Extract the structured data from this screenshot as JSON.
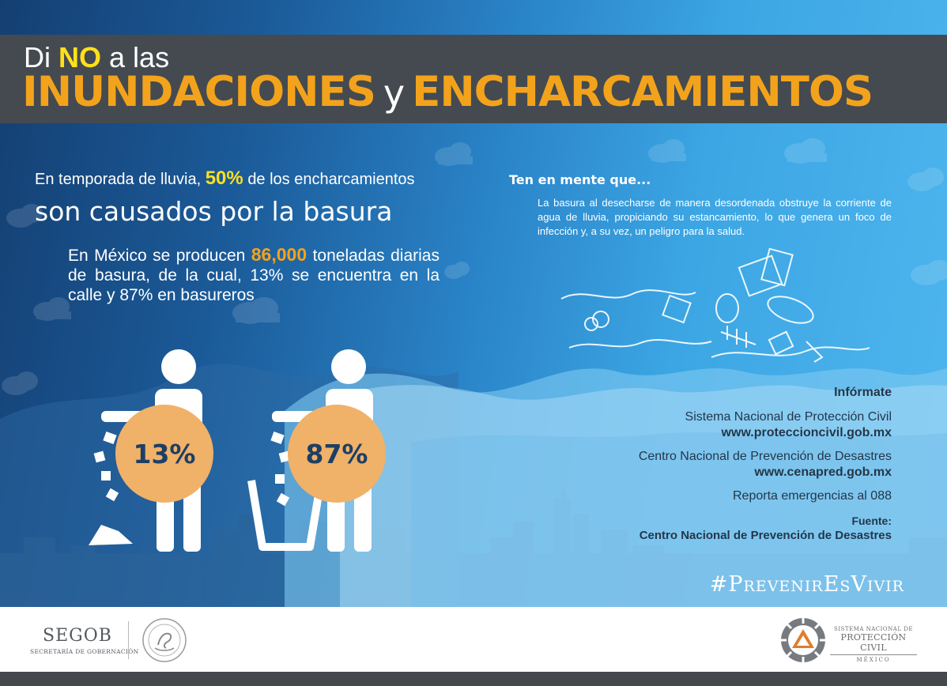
{
  "header": {
    "line1_pre": "Di",
    "line1_no": "NO",
    "line1_post": "a las",
    "word1": "INUNDACIONES",
    "joiner": "y",
    "word2": "ENCHARCAMIENTOS"
  },
  "left": {
    "lead_pre": "En temporada de lluvia,",
    "lead_pct": "50%",
    "lead_post": "de los encharcamientos",
    "headline": "son causados por la basura",
    "fact_pre": "En México se producen",
    "fact_num": "86,000",
    "fact_post": "toneladas diarias de basura, de la cual, 13% se encuentra en la calle y 87% en basureros",
    "pct_street": "13%",
    "pct_bins": "87%"
  },
  "right": {
    "tip_title": "Ten en mente que...",
    "tip_body": "La basura al desecharse de manera desordenada obstruye la corriente de agua de lluvia, propiciando su estancamiento, lo que genera un foco de infección y, a su vez, un peligro para la salud."
  },
  "info": {
    "head": "Infórmate",
    "org1": "Sistema Nacional de Protección Civil",
    "url1": "www.proteccioncivil.gob.mx",
    "org2": "Centro Nacional de Prevención de Desastres",
    "url2": "www.cenapred.gob.mx",
    "report": "Reporta emergencias al 088",
    "source_label": "Fuente:",
    "source": "Centro Nacional de Prevención de Desastres"
  },
  "hashtag": "#PrevenirEsVivir",
  "footer": {
    "segob": "SEGOB",
    "segob_sub": "SECRETARÍA DE GOBERNACIÓN",
    "pc_line1": "SISTEMA NACIONAL DE",
    "pc_line2": "PROTECCIÓN CIVIL",
    "pc_line3": "MÉXICO"
  },
  "colors": {
    "header_band": "#444a50",
    "accent_orange": "#f3a31b",
    "accent_yellow": "#ffe01b",
    "circle_orange": "#f0b169",
    "navy_text": "#1d3f64"
  }
}
